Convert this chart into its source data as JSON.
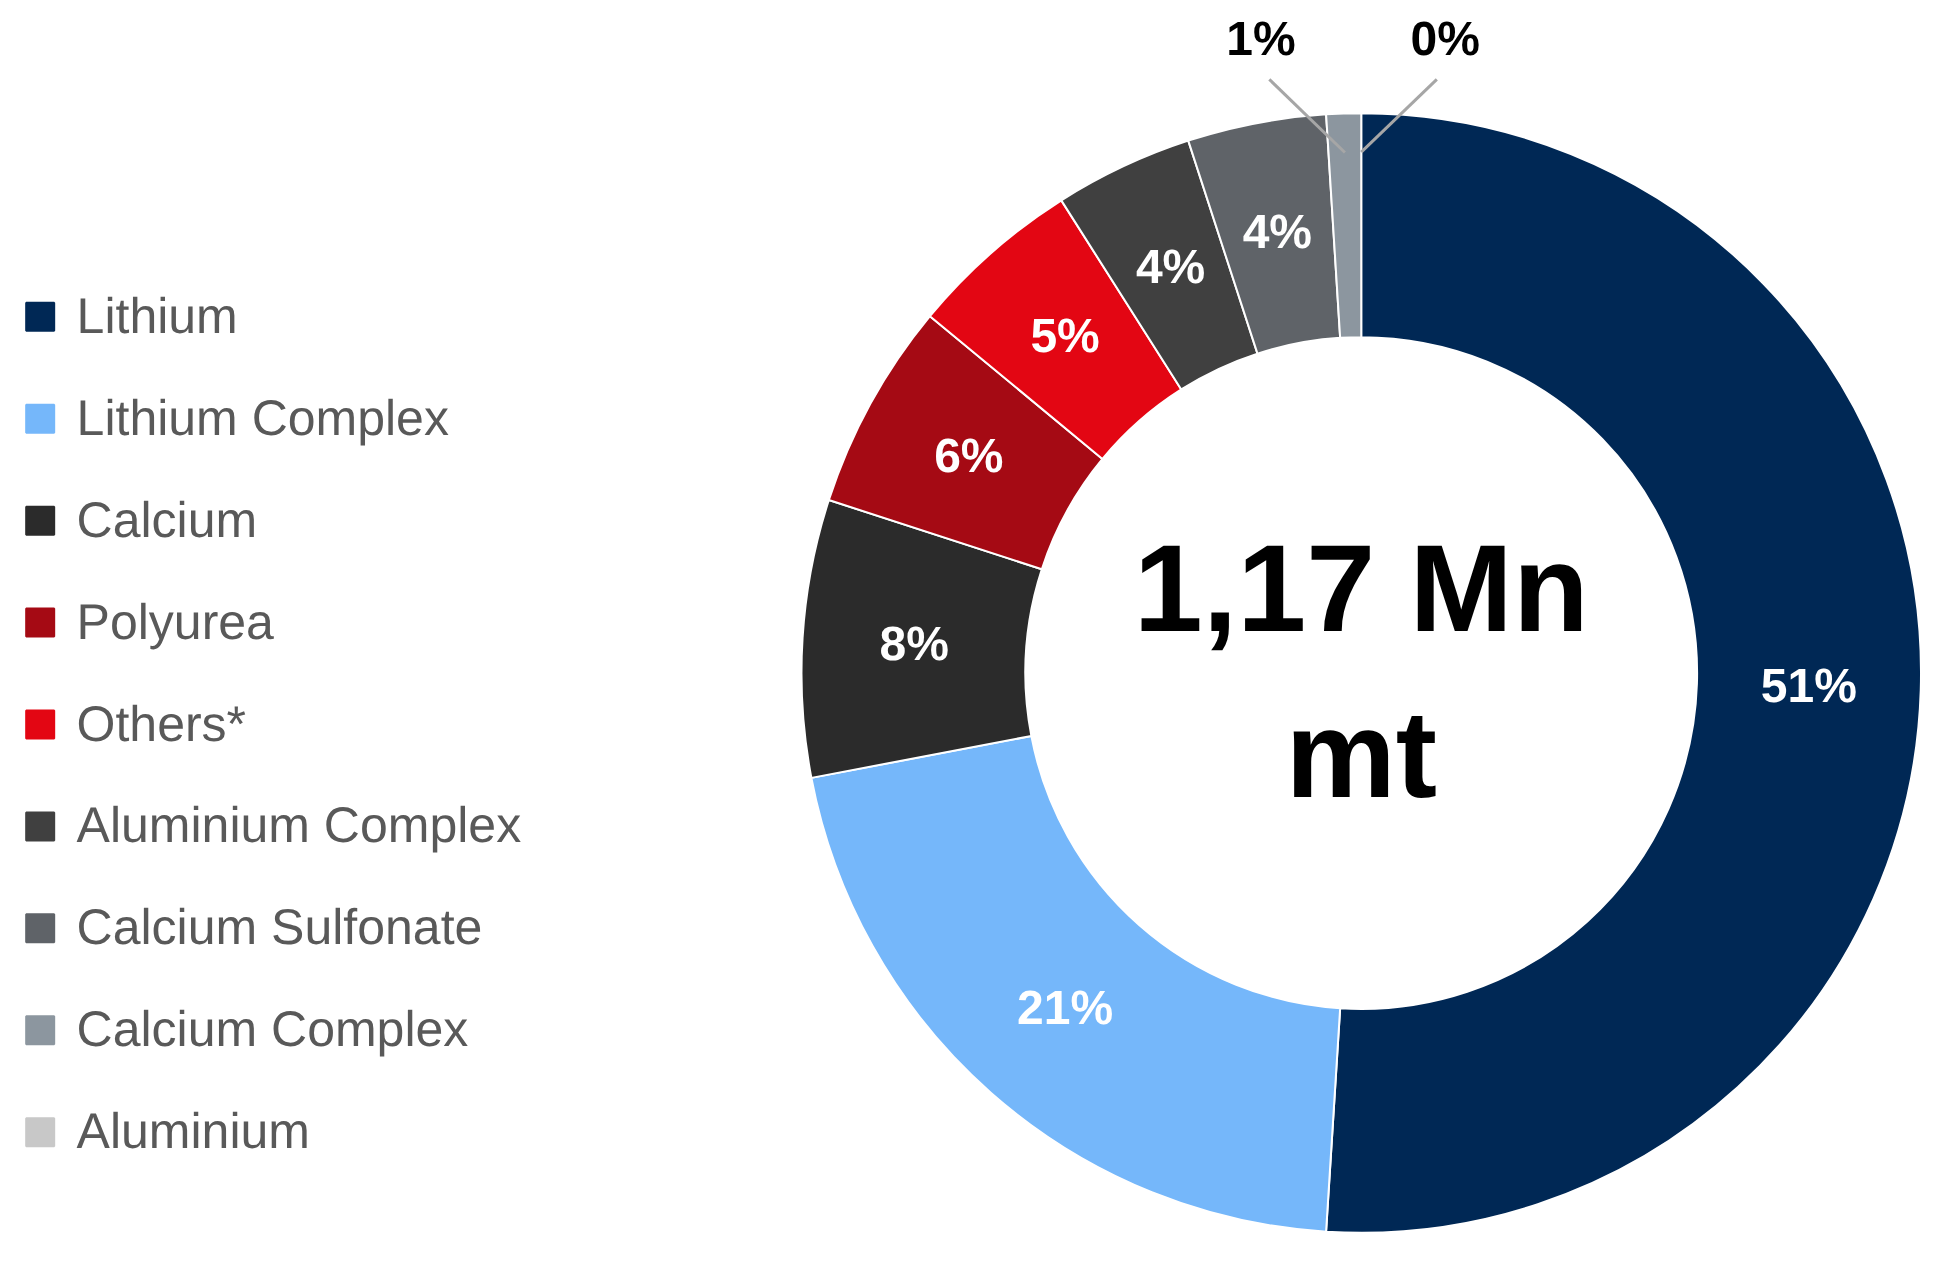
{
  "chart_data": {
    "type": "donut",
    "categories": [
      "Lithium",
      "Lithium Complex",
      "Calcium",
      "Polyurea",
      "Others*",
      "Aluminium Complex",
      "Calcium Sulfonate",
      "Calcium Complex",
      "Aluminium"
    ],
    "values": [
      51,
      21,
      8,
      6,
      5,
      4,
      4,
      1,
      0
    ],
    "colors": [
      "#002855",
      "#75b7fa",
      "#2b2b2b",
      "#a50a14",
      "#e30613",
      "#404040",
      "#5f6368",
      "#8c969f",
      "#c8c8c8"
    ],
    "value_labels": [
      "51%",
      "21%",
      "8%",
      "6%",
      "5%",
      "4%",
      "4%",
      "1%",
      "0%"
    ],
    "legend": "left",
    "annotations": [
      "1,17 Mn\nmt"
    ]
  }
}
